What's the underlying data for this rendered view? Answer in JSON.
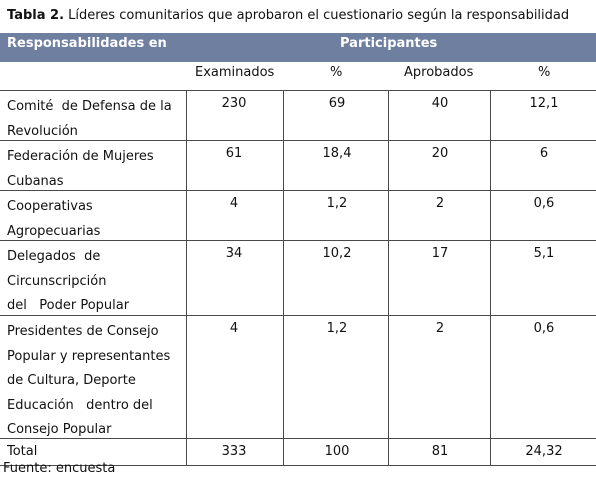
{
  "caption": {
    "prefix": "Tabla 2.",
    "text": " Líderes comunitarios que aprobaron el cuestionario según la responsabilidad"
  },
  "header": {
    "col1": "Responsabilidades  en",
    "group": "Participantes"
  },
  "subheader": [
    "Examinados",
    "%",
    "Aprobados",
    "%"
  ],
  "rows": [
    {
      "label": [
        "Comité  de Defensa de la",
        "Revolución"
      ],
      "values": [
        "230",
        "69",
        "40",
        "12,1"
      ]
    },
    {
      "label": [
        "Federación de Mujeres",
        "Cubanas"
      ],
      "values": [
        "61",
        "18,4",
        "20",
        "6"
      ]
    },
    {
      "label": [
        "Cooperativas",
        "Agropecuarias"
      ],
      "values": [
        "4",
        "1,2",
        "2",
        "0,6"
      ]
    },
    {
      "label": [
        "Delegados  de",
        "Circunscripción",
        "del   Poder Popular"
      ],
      "values": [
        "34",
        "10,2",
        "17",
        "5,1"
      ]
    },
    {
      "label": [
        "Presidentes de Consejo",
        "Popular y representantes",
        "de Cultura, Deporte",
        "Educación   dentro del",
        "Consejo Popular"
      ],
      "values": [
        "4",
        "1,2",
        "2",
        "0,6"
      ]
    },
    {
      "label": [
        "Total"
      ],
      "values": [
        "333",
        "100",
        "81",
        "24,32"
      ]
    }
  ],
  "footer": "Fuente: encuesta"
}
